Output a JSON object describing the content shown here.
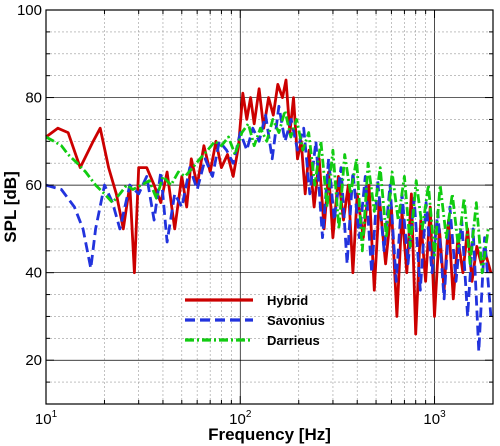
{
  "chart_data": {
    "type": "line",
    "title": "",
    "xlabel": "Frequency [Hz]",
    "ylabel": "SPL [dB]",
    "xscale": "log",
    "xlim": [
      10,
      2000
    ],
    "ylim": [
      10,
      100
    ],
    "xticks": [
      {
        "value": 10,
        "base": "10",
        "exp": "1"
      },
      {
        "value": 100,
        "base": "10",
        "exp": "2"
      },
      {
        "value": 1000,
        "base": "10",
        "exp": "3"
      }
    ],
    "yticks": [
      20,
      40,
      60,
      80,
      100
    ],
    "grid": true,
    "legend_position": "lower-center",
    "series": [
      {
        "name": "Hybrid",
        "color": "#cc0000",
        "style": "solid",
        "x": [
          10,
          11.5,
          13,
          15,
          17.5,
          19,
          21,
          23,
          25,
          27,
          28.5,
          30,
          33,
          36,
          39,
          42,
          46,
          50,
          53,
          56,
          60,
          65,
          70,
          75,
          80,
          86,
          92,
          98,
          103,
          108,
          113,
          118,
          125,
          132,
          140,
          148,
          156,
          165,
          172,
          180,
          188,
          197,
          206,
          216,
          226,
          240,
          255,
          270,
          285,
          300,
          320,
          340,
          360,
          380,
          400,
          430,
          460,
          490,
          520,
          560,
          600,
          640,
          680,
          720,
          760,
          800,
          850,
          900,
          950,
          1000,
          1060,
          1120,
          1180,
          1250,
          1320,
          1400,
          1480,
          1560,
          1650,
          1740,
          1840,
          1950
        ],
        "y": [
          71,
          73,
          72,
          64,
          70,
          73,
          64,
          58,
          50,
          60,
          40,
          64,
          64,
          60,
          56,
          63,
          50,
          62,
          55,
          66,
          60,
          69,
          63,
          70,
          64,
          67,
          62,
          69,
          81,
          75,
          80,
          74,
          82,
          73,
          80,
          76,
          83,
          80,
          84,
          72,
          80,
          66,
          70,
          58,
          68,
          55,
          66,
          50,
          63,
          48,
          62,
          52,
          60,
          40,
          58,
          48,
          60,
          36,
          57,
          42,
          55,
          30,
          54,
          40,
          58,
          26,
          52,
          38,
          55,
          30,
          50,
          36,
          52,
          34,
          48,
          40,
          50,
          38,
          46,
          42,
          44,
          40
        ]
      },
      {
        "name": "Savonius",
        "color": "#2233dd",
        "style": "dashed",
        "x": [
          10,
          12,
          14,
          15.5,
          17,
          18,
          20,
          22,
          24,
          27,
          30,
          33,
          36,
          39,
          42,
          46,
          50,
          55,
          60,
          66,
          72,
          78,
          85,
          92,
          100,
          108,
          116,
          125,
          135,
          146,
          158,
          170,
          183,
          197,
          212,
          228,
          245,
          265,
          285,
          305,
          330,
          355,
          380,
          410,
          440,
          475,
          510,
          550,
          590,
          635,
          680,
          730,
          785,
          845,
          905,
          970,
          1040,
          1120,
          1200,
          1290,
          1380,
          1480,
          1580,
          1690,
          1810,
          1950
        ],
        "y": [
          60,
          59,
          55,
          50,
          41,
          50,
          60,
          56,
          50,
          60,
          58,
          62,
          52,
          63,
          47,
          58,
          55,
          64,
          59,
          66,
          62,
          70,
          68,
          65,
          72,
          68,
          73,
          70,
          76,
          66,
          78,
          70,
          75,
          68,
          73,
          58,
          70,
          48,
          66,
          52,
          64,
          42,
          63,
          48,
          62,
          40,
          61,
          45,
          60,
          38,
          58,
          42,
          57,
          36,
          56,
          40,
          54,
          34,
          55,
          38,
          52,
          30,
          50,
          22,
          48,
          30
        ]
      },
      {
        "name": "Darrieus",
        "color": "#11cc11",
        "style": "dashdot",
        "x": [
          10,
          11,
          12,
          13,
          14.5,
          16,
          18,
          20,
          22,
          24,
          26,
          28,
          31,
          34,
          37,
          40,
          44,
          48,
          52,
          57,
          62,
          68,
          74,
          80,
          87,
          94,
          102,
          110,
          118,
          127,
          137,
          147,
          158,
          170,
          182,
          195,
          210,
          225,
          242,
          260,
          280,
          300,
          322,
          345,
          370,
          397,
          425,
          455,
          490,
          525,
          565,
          605,
          650,
          700,
          750,
          805,
          865,
          930,
          1000,
          1070,
          1150,
          1235,
          1325,
          1420,
          1525,
          1640,
          1760,
          1890
        ],
        "y": [
          71,
          70,
          69,
          67,
          65,
          63,
          60,
          58,
          56,
          58,
          60,
          59,
          60,
          61,
          57,
          62,
          60,
          63,
          62,
          64,
          66,
          68,
          70,
          69,
          71,
          67,
          72,
          74,
          69,
          73,
          70,
          75,
          72,
          77,
          71,
          75,
          68,
          72,
          60,
          70,
          55,
          68,
          50,
          67,
          58,
          66,
          45,
          65,
          54,
          64,
          48,
          63,
          52,
          62,
          46,
          61,
          50,
          60,
          44,
          60,
          48,
          58,
          46,
          57,
          42,
          56,
          40,
          50
        ]
      }
    ]
  }
}
